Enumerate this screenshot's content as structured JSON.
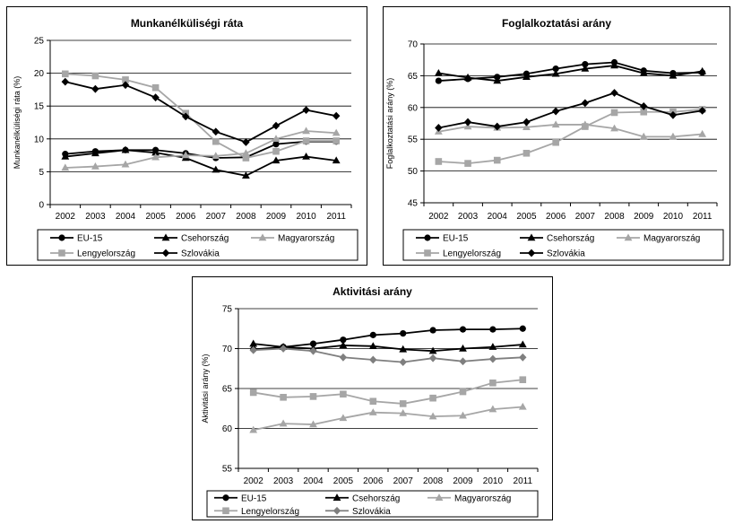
{
  "chart_data": [
    {
      "type": "line",
      "title": "Munkanélküliségi ráta",
      "ylabel": "Munkanélküliségi ráta (%)",
      "xlabel": "",
      "x": [
        "2002",
        "2003",
        "2004",
        "2005",
        "2006",
        "2007",
        "2008",
        "2009",
        "2010",
        "2011"
      ],
      "ylim": [
        0,
        25
      ],
      "yticks": [
        0,
        5,
        10,
        15,
        20,
        25
      ],
      "grid": true,
      "legend_position": "bottom",
      "series": [
        {
          "name": "EU-15",
          "color": "#000000",
          "marker": "circle",
          "values": [
            7.7,
            8.1,
            8.3,
            8.3,
            7.8,
            7.1,
            7.2,
            9.2,
            9.6,
            9.6
          ]
        },
        {
          "name": "Csehország",
          "color": "#000000",
          "marker": "triangle",
          "values": [
            7.3,
            7.8,
            8.3,
            7.9,
            7.1,
            5.3,
            4.4,
            6.7,
            7.3,
            6.7
          ]
        },
        {
          "name": "Magyarország",
          "color": "#a6a6a6",
          "marker": "triangle",
          "values": [
            5.6,
            5.8,
            6.1,
            7.2,
            7.5,
            7.4,
            7.8,
            10.0,
            11.2,
            10.9
          ]
        },
        {
          "name": "Lengyelország",
          "color": "#a6a6a6",
          "marker": "square",
          "values": [
            19.9,
            19.6,
            19.0,
            17.8,
            13.9,
            9.6,
            7.1,
            8.1,
            9.7,
            9.7
          ]
        },
        {
          "name": "Szlovákia",
          "color": "#000000",
          "marker": "diamond",
          "values": [
            18.7,
            17.6,
            18.2,
            16.3,
            13.4,
            11.1,
            9.5,
            12.0,
            14.4,
            13.5
          ]
        }
      ]
    },
    {
      "type": "line",
      "title": "Foglalkoztatási arány",
      "ylabel": "Foglalkoztatási arány (%)",
      "xlabel": "",
      "x": [
        "2002",
        "2003",
        "2004",
        "2005",
        "2006",
        "2007",
        "2008",
        "2009",
        "2010",
        "2011"
      ],
      "ylim": [
        45,
        70
      ],
      "yticks": [
        45,
        50,
        55,
        60,
        65,
        70
      ],
      "grid": true,
      "legend_position": "bottom",
      "series": [
        {
          "name": "EU-15",
          "color": "#000000",
          "marker": "circle",
          "values": [
            64.2,
            64.5,
            64.8,
            65.3,
            66.1,
            66.8,
            67.1,
            65.8,
            65.4,
            65.5
          ]
        },
        {
          "name": "Csehország",
          "color": "#000000",
          "marker": "triangle",
          "values": [
            65.4,
            64.7,
            64.2,
            64.8,
            65.3,
            66.1,
            66.6,
            65.4,
            65.0,
            65.7
          ]
        },
        {
          "name": "Magyarország",
          "color": "#a6a6a6",
          "marker": "triangle",
          "values": [
            56.2,
            57.0,
            56.8,
            56.9,
            57.3,
            57.3,
            56.7,
            55.4,
            55.4,
            55.8
          ]
        },
        {
          "name": "Lengyelország",
          "color": "#a6a6a6",
          "marker": "square",
          "values": [
            51.5,
            51.2,
            51.7,
            52.8,
            54.5,
            57.0,
            59.2,
            59.3,
            59.3,
            59.7
          ]
        },
        {
          "name": "Szlovákia",
          "color": "#000000",
          "marker": "diamond",
          "values": [
            56.8,
            57.7,
            57.0,
            57.7,
            59.4,
            60.7,
            62.3,
            60.2,
            58.8,
            59.5
          ]
        }
      ]
    },
    {
      "type": "line",
      "title": "Aktivitási arány",
      "ylabel": "Aktivitási arány (%)",
      "xlabel": "",
      "x": [
        "2002",
        "2003",
        "2004",
        "2005",
        "2006",
        "2007",
        "2008",
        "2009",
        "2010",
        "2011"
      ],
      "ylim": [
        55,
        75
      ],
      "yticks": [
        55,
        60,
        65,
        70,
        75
      ],
      "grid": true,
      "legend_position": "bottom",
      "series": [
        {
          "name": "EU-15",
          "color": "#000000",
          "marker": "circle",
          "values": [
            69.9,
            70.2,
            70.6,
            71.1,
            71.7,
            71.9,
            72.3,
            72.4,
            72.4,
            72.5
          ]
        },
        {
          "name": "Csehország",
          "color": "#000000",
          "marker": "triangle",
          "values": [
            70.6,
            70.2,
            70.0,
            70.4,
            70.3,
            69.9,
            69.7,
            70.0,
            70.2,
            70.5
          ]
        },
        {
          "name": "Magyarország",
          "color": "#a6a6a6",
          "marker": "triangle",
          "values": [
            59.8,
            60.6,
            60.5,
            61.3,
            62.0,
            61.9,
            61.5,
            61.6,
            62.4,
            62.7
          ]
        },
        {
          "name": "Lengyelország",
          "color": "#a6a6a6",
          "marker": "square",
          "values": [
            64.5,
            63.9,
            64.0,
            64.3,
            63.4,
            63.1,
            63.8,
            64.6,
            65.7,
            66.1
          ]
        },
        {
          "name": "Szlovákia",
          "color": "#7f7f7f",
          "marker": "diamond",
          "values": [
            69.8,
            70.0,
            69.7,
            68.9,
            68.6,
            68.3,
            68.8,
            68.4,
            68.7,
            68.9
          ]
        }
      ]
    }
  ]
}
